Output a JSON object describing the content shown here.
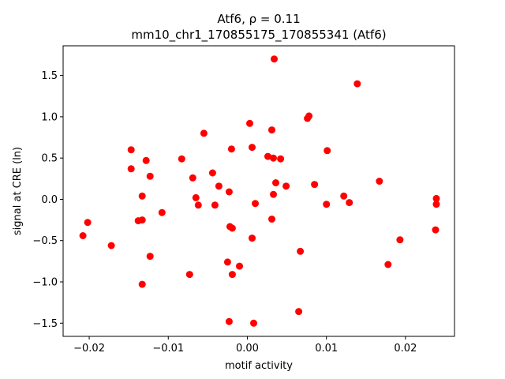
{
  "chart_data": {
    "type": "scatter",
    "title_line1": "Atf6, ρ = 0.11",
    "title_line2": "mm10_chr1_170855175_170855341 (Atf6)",
    "xlabel": "motif activity",
    "ylabel": "signal at CRE (ln)",
    "xlim": [
      -0.0233,
      0.0262
    ],
    "ylim": [
      -1.66,
      1.86
    ],
    "xticks": [
      -0.02,
      -0.01,
      0.0,
      0.01,
      0.02
    ],
    "xtick_labels": [
      "−0.02",
      "−0.01",
      "0.00",
      "0.01",
      "0.02"
    ],
    "yticks": [
      -1.5,
      -1.0,
      -0.5,
      0.0,
      0.5,
      1.0,
      1.5
    ],
    "ytick_labels": [
      "−1.5",
      "−1.0",
      "−0.5",
      "0.0",
      "0.5",
      "1.0",
      "1.5"
    ],
    "marker_color": "#ff0000",
    "points": [
      {
        "x": -0.0208,
        "y": -0.44
      },
      {
        "x": -0.0202,
        "y": -0.28
      },
      {
        "x": -0.0172,
        "y": -0.56
      },
      {
        "x": -0.0147,
        "y": 0.6
      },
      {
        "x": -0.0147,
        "y": 0.37
      },
      {
        "x": -0.0138,
        "y": -0.26
      },
      {
        "x": -0.0133,
        "y": 0.04
      },
      {
        "x": -0.0133,
        "y": -0.25
      },
      {
        "x": -0.0133,
        "y": -1.03
      },
      {
        "x": -0.0128,
        "y": 0.47
      },
      {
        "x": -0.0123,
        "y": 0.28
      },
      {
        "x": -0.0123,
        "y": -0.69
      },
      {
        "x": -0.0108,
        "y": -0.16
      },
      {
        "x": -0.0083,
        "y": 0.49
      },
      {
        "x": -0.0073,
        "y": -0.91
      },
      {
        "x": -0.0069,
        "y": 0.26
      },
      {
        "x": -0.0065,
        "y": 0.02
      },
      {
        "x": -0.0062,
        "y": -0.07
      },
      {
        "x": -0.0055,
        "y": 0.8
      },
      {
        "x": -0.0044,
        "y": 0.32
      },
      {
        "x": -0.0041,
        "y": -0.07
      },
      {
        "x": -0.0036,
        "y": 0.16
      },
      {
        "x": -0.0025,
        "y": -0.76
      },
      {
        "x": -0.0023,
        "y": 0.09
      },
      {
        "x": -0.0023,
        "y": -1.48
      },
      {
        "x": -0.0022,
        "y": -0.33
      },
      {
        "x": -0.002,
        "y": 0.61
      },
      {
        "x": -0.0019,
        "y": -0.35
      },
      {
        "x": -0.0019,
        "y": -0.91
      },
      {
        "x": -0.001,
        "y": -0.81
      },
      {
        "x": 0.0003,
        "y": 0.92
      },
      {
        "x": 0.0006,
        "y": 0.63
      },
      {
        "x": 0.0006,
        "y": -0.47
      },
      {
        "x": 0.0008,
        "y": -1.5
      },
      {
        "x": 0.001,
        "y": -0.05
      },
      {
        "x": 0.0026,
        "y": 0.52
      },
      {
        "x": 0.0031,
        "y": 0.84
      },
      {
        "x": 0.0031,
        "y": -0.24
      },
      {
        "x": 0.0033,
        "y": 0.5
      },
      {
        "x": 0.0033,
        "y": 0.06
      },
      {
        "x": 0.0034,
        "y": 1.7
      },
      {
        "x": 0.0036,
        "y": 0.2
      },
      {
        "x": 0.0042,
        "y": 0.49
      },
      {
        "x": 0.0049,
        "y": 0.16
      },
      {
        "x": 0.0065,
        "y": -1.36
      },
      {
        "x": 0.0067,
        "y": -0.63
      },
      {
        "x": 0.0076,
        "y": 0.98
      },
      {
        "x": 0.0078,
        "y": 1.01
      },
      {
        "x": 0.0085,
        "y": 0.18
      },
      {
        "x": 0.01,
        "y": -0.06
      },
      {
        "x": 0.0101,
        "y": 0.59
      },
      {
        "x": 0.0122,
        "y": 0.04
      },
      {
        "x": 0.0129,
        "y": -0.04
      },
      {
        "x": 0.0139,
        "y": 1.4
      },
      {
        "x": 0.0167,
        "y": 0.22
      },
      {
        "x": 0.0178,
        "y": -0.79
      },
      {
        "x": 0.0193,
        "y": -0.49
      },
      {
        "x": 0.0238,
        "y": -0.37
      },
      {
        "x": 0.0239,
        "y": 0.01
      },
      {
        "x": 0.0239,
        "y": -0.06
      }
    ]
  }
}
